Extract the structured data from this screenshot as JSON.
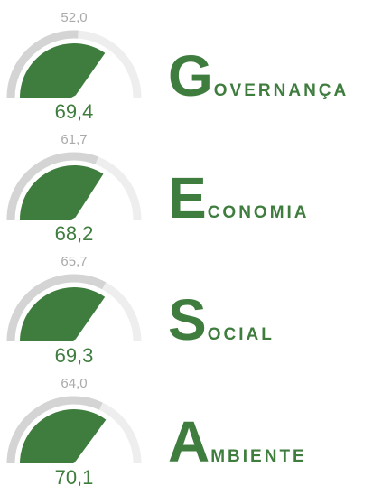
{
  "chart_data": [
    {
      "type": "gauge",
      "title": "GOVERNANÇA",
      "value": 69.4,
      "value_label": "69,4",
      "reference": 52,
      "reference_label": "52,0",
      "ylim": [
        0,
        100
      ],
      "color": "#3f7d3f",
      "reference_color": "#d4d4d4",
      "track_color": "#eeeeee"
    },
    {
      "type": "gauge",
      "title": "ECONOMIA",
      "value": 68.2,
      "value_label": "68,2",
      "reference": 61.7,
      "reference_label": "61,7",
      "ylim": [
        0,
        100
      ],
      "color": "#3f7d3f",
      "reference_color": "#d4d4d4",
      "track_color": "#eeeeee"
    },
    {
      "type": "gauge",
      "title": "SOCIAL",
      "value": 69.3,
      "value_label": "69,3",
      "reference": 65.7,
      "reference_label": "65,7",
      "ylim": [
        0,
        100
      ],
      "color": "#3f7d3f",
      "reference_color": "#d4d4d4",
      "track_color": "#eeeeee"
    },
    {
      "type": "gauge",
      "title": "AMBIENTE",
      "value": 70.1,
      "value_label": "70,1",
      "reference": 64,
      "reference_label": "64,0",
      "ylim": [
        0,
        100
      ],
      "color": "#3f7d3f",
      "reference_color": "#d4d4d4",
      "track_color": "#eeeeee"
    }
  ]
}
